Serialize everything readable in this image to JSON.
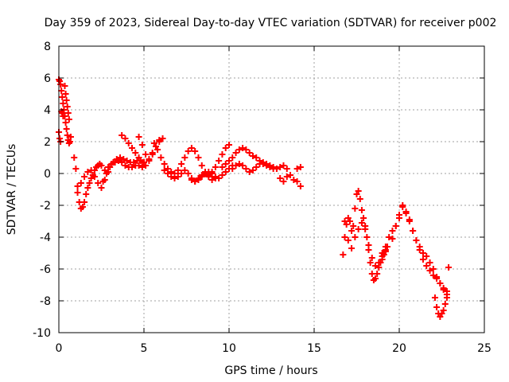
{
  "chart_data": {
    "type": "scatter",
    "title": "Day 359 of 2023, Sidereal Day-to-day VTEC variation (SDTVAR) for receiver p002",
    "xlabel": "GPS time / hours",
    "ylabel": "SDTVAR / TECUs",
    "xlim": [
      0,
      25
    ],
    "ylim": [
      -10,
      8
    ],
    "xticks": [
      0,
      5,
      10,
      15,
      20,
      25
    ],
    "xtick_labels": [
      "0",
      "5",
      "10",
      "15",
      "20",
      "25"
    ],
    "yticks": [
      -10,
      -8,
      -6,
      -4,
      -2,
      0,
      2,
      4,
      6,
      8
    ],
    "ytick_labels": [
      "-10",
      "-8",
      "-6",
      "-4",
      "-2",
      "0",
      "2",
      "4",
      "6",
      "8"
    ],
    "grid": true,
    "marker": "+",
    "series": [
      {
        "name": "SDTVAR",
        "color": "#ff0000",
        "x": [
          0.0,
          0.05,
          0.1,
          0.15,
          0.2,
          0.25,
          0.3,
          0.35,
          0.4,
          0.45,
          0.5,
          0.55,
          0.6,
          0.65,
          0.7,
          0.0,
          0.05,
          0.1,
          0.15,
          0.2,
          0.25,
          0.3,
          0.35,
          0.4,
          0.45,
          0.5,
          0.55,
          0.6,
          0.9,
          1.0,
          1.1,
          1.2,
          1.3,
          1.4,
          1.5,
          1.6,
          1.7,
          1.8,
          1.9,
          2.0,
          2.1,
          2.2,
          2.3,
          2.4,
          2.5,
          1.1,
          1.3,
          1.5,
          1.7,
          1.9,
          2.1,
          2.3,
          2.5,
          2.7,
          2.9,
          2.6,
          2.8,
          3.0,
          3.2,
          3.4,
          3.6,
          3.8,
          4.0,
          4.2,
          4.4,
          4.6,
          4.8,
          5.0,
          2.7,
          2.9,
          3.1,
          3.3,
          3.5,
          3.7,
          3.9,
          4.1,
          4.3,
          4.5,
          4.7,
          4.9,
          3.7,
          3.9,
          4.1,
          4.3,
          4.5,
          4.7,
          4.9,
          5.1,
          5.3,
          5.5,
          5.7,
          5.9,
          6.1,
          4.7,
          4.9,
          5.1,
          5.3,
          5.5,
          5.7,
          5.9,
          5.6,
          5.8,
          6.0,
          6.2,
          6.4,
          6.6,
          6.8,
          7.0,
          7.2,
          7.4,
          7.6,
          7.8,
          8.0,
          8.2,
          8.4,
          8.6,
          8.8,
          9.0,
          9.2,
          9.4,
          9.6,
          9.8,
          10.0,
          6.2,
          6.4,
          6.6,
          6.8,
          7.0,
          7.2,
          7.4,
          7.6,
          7.8,
          8.0,
          8.2,
          8.4,
          8.6,
          8.8,
          9.0,
          9.2,
          9.4,
          9.6,
          9.8,
          10.0,
          10.2,
          7.8,
          8.0,
          8.2,
          8.4,
          8.6,
          8.8,
          9.0,
          9.2,
          9.6,
          9.8,
          10.0,
          10.2,
          10.4,
          10.6,
          10.8,
          11.0,
          11.2,
          11.4,
          11.6,
          11.8,
          12.0,
          12.2,
          10.2,
          10.4,
          10.6,
          10.8,
          11.0,
          11.2,
          11.4,
          11.6,
          11.8,
          12.0,
          12.2,
          12.4,
          12.6,
          12.8,
          12.4,
          12.6,
          12.8,
          13.0,
          13.2,
          13.4,
          13.6,
          13.8,
          14.0,
          14.2,
          13.0,
          13.2,
          13.4,
          14.0,
          14.2,
          16.7,
          16.8,
          16.9,
          17.0,
          17.1,
          17.2,
          17.3,
          17.4,
          17.5,
          17.6,
          17.7,
          17.8,
          17.9,
          18.0,
          18.1,
          18.2,
          18.3,
          18.4,
          18.5,
          18.6,
          18.7,
          18.8,
          18.9,
          19.0,
          19.1,
          19.2,
          19.3,
          16.8,
          17.0,
          17.2,
          17.4,
          17.6,
          17.8,
          18.0,
          18.2,
          18.4,
          18.6,
          18.8,
          19.0,
          19.2,
          19.0,
          19.2,
          19.4,
          19.6,
          19.8,
          20.0,
          20.2,
          20.4,
          20.6,
          20.8,
          21.0,
          21.2,
          21.4,
          21.6,
          21.8,
          22.0,
          22.2,
          22.4,
          22.6,
          22.8,
          19.6,
          19.8,
          20.0,
          20.2,
          20.4,
          20.6,
          20.8,
          21.0,
          21.2,
          21.4,
          21.6,
          21.8,
          22.0,
          22.2,
          22.4,
          22.6,
          22.8,
          22.1,
          22.2,
          22.3,
          22.4,
          22.5,
          22.6,
          22.7,
          22.8,
          22.9
        ],
        "y": [
          5.9,
          5.8,
          5.6,
          5.2,
          4.8,
          4.4,
          4.0,
          3.6,
          3.2,
          2.8,
          2.4,
          2.1,
          1.9,
          2.0,
          2.3,
          2.6,
          2.2,
          2.0,
          3.9,
          3.8,
          3.6,
          4.0,
          5.5,
          5.0,
          4.6,
          4.2,
          3.8,
          3.4,
          1.0,
          0.3,
          -0.8,
          -1.8,
          -2.2,
          -2.1,
          -1.8,
          -1.3,
          -0.9,
          -0.6,
          -0.3,
          -0.1,
          0.2,
          0.4,
          0.5,
          0.6,
          0.5,
          -1.2,
          -0.6,
          -0.2,
          0.1,
          0.2,
          -0.2,
          -0.6,
          -0.9,
          -0.4,
          0.1,
          -0.5,
          0.0,
          0.4,
          0.7,
          0.9,
          1.0,
          0.9,
          0.8,
          0.7,
          0.7,
          0.8,
          0.8,
          0.7,
          0.2,
          0.4,
          0.6,
          0.7,
          0.8,
          0.7,
          0.5,
          0.4,
          0.4,
          0.5,
          0.5,
          0.4,
          2.4,
          2.2,
          1.9,
          1.6,
          1.3,
          1.0,
          0.7,
          0.5,
          0.9,
          1.3,
          1.7,
          2.0,
          2.2,
          2.3,
          1.8,
          1.2,
          0.8,
          1.2,
          1.7,
          2.1,
          1.9,
          1.5,
          1.0,
          0.6,
          0.3,
          0.1,
          0.0,
          0.2,
          0.6,
          1.0,
          1.4,
          1.6,
          1.4,
          1.0,
          0.5,
          0.1,
          -0.1,
          0.1,
          0.4,
          0.8,
          1.2,
          1.6,
          1.8,
          0.2,
          0.0,
          -0.2,
          -0.3,
          -0.2,
          0.0,
          0.2,
          0.0,
          -0.3,
          -0.5,
          -0.4,
          -0.2,
          0.0,
          0.1,
          0.0,
          -0.2,
          -0.3,
          -0.1,
          0.1,
          0.3,
          0.5,
          -0.4,
          -0.5,
          -0.3,
          -0.1,
          0.0,
          -0.2,
          -0.4,
          -0.3,
          0.4,
          0.6,
          0.8,
          1.0,
          1.3,
          1.5,
          1.6,
          1.5,
          1.3,
          1.1,
          1.0,
          0.8,
          0.6,
          0.5,
          0.3,
          0.5,
          0.6,
          0.5,
          0.3,
          0.1,
          0.2,
          0.4,
          0.6,
          0.7,
          0.6,
          0.4,
          0.3,
          0.3,
          0.5,
          0.4,
          0.3,
          0.4,
          0.5,
          0.3,
          -0.1,
          -0.4,
          0.3,
          0.4,
          -0.3,
          -0.5,
          -0.2,
          -0.5,
          -0.8,
          -5.1,
          -4.0,
          -3.2,
          -2.8,
          -3.0,
          -3.6,
          -3.3,
          -2.2,
          -1.3,
          -1.1,
          -1.6,
          -2.3,
          -2.8,
          -3.3,
          -4.0,
          -4.8,
          -5.6,
          -6.3,
          -6.7,
          -6.6,
          -6.3,
          -5.9,
          -5.6,
          -5.4,
          -5.1,
          -4.9,
          -4.6,
          -3.0,
          -4.2,
          -4.7,
          -4.0,
          -3.5,
          -3.1,
          -3.5,
          -4.5,
          -5.3,
          -5.8,
          -5.6,
          -5.2,
          -4.8,
          -5.0,
          -4.6,
          -4.0,
          -3.6,
          -3.3,
          -2.8,
          -2.1,
          -2.4,
          -2.9,
          -3.6,
          -4.2,
          -4.8,
          -5.4,
          -5.8,
          -6.1,
          -6.4,
          -6.6,
          -6.9,
          -7.3,
          -7.8,
          -4.1,
          -3.3,
          -2.6,
          -2.0,
          -2.5,
          -3.0,
          -3.6,
          -4.2,
          -4.6,
          -5.0,
          -5.2,
          -5.6,
          -6.0,
          -6.5,
          -6.9,
          -7.2,
          -7.6,
          -7.8,
          -8.4,
          -8.8,
          -9.0,
          -8.8,
          -8.6,
          -8.2,
          -7.4,
          -5.9
        ]
      }
    ]
  }
}
